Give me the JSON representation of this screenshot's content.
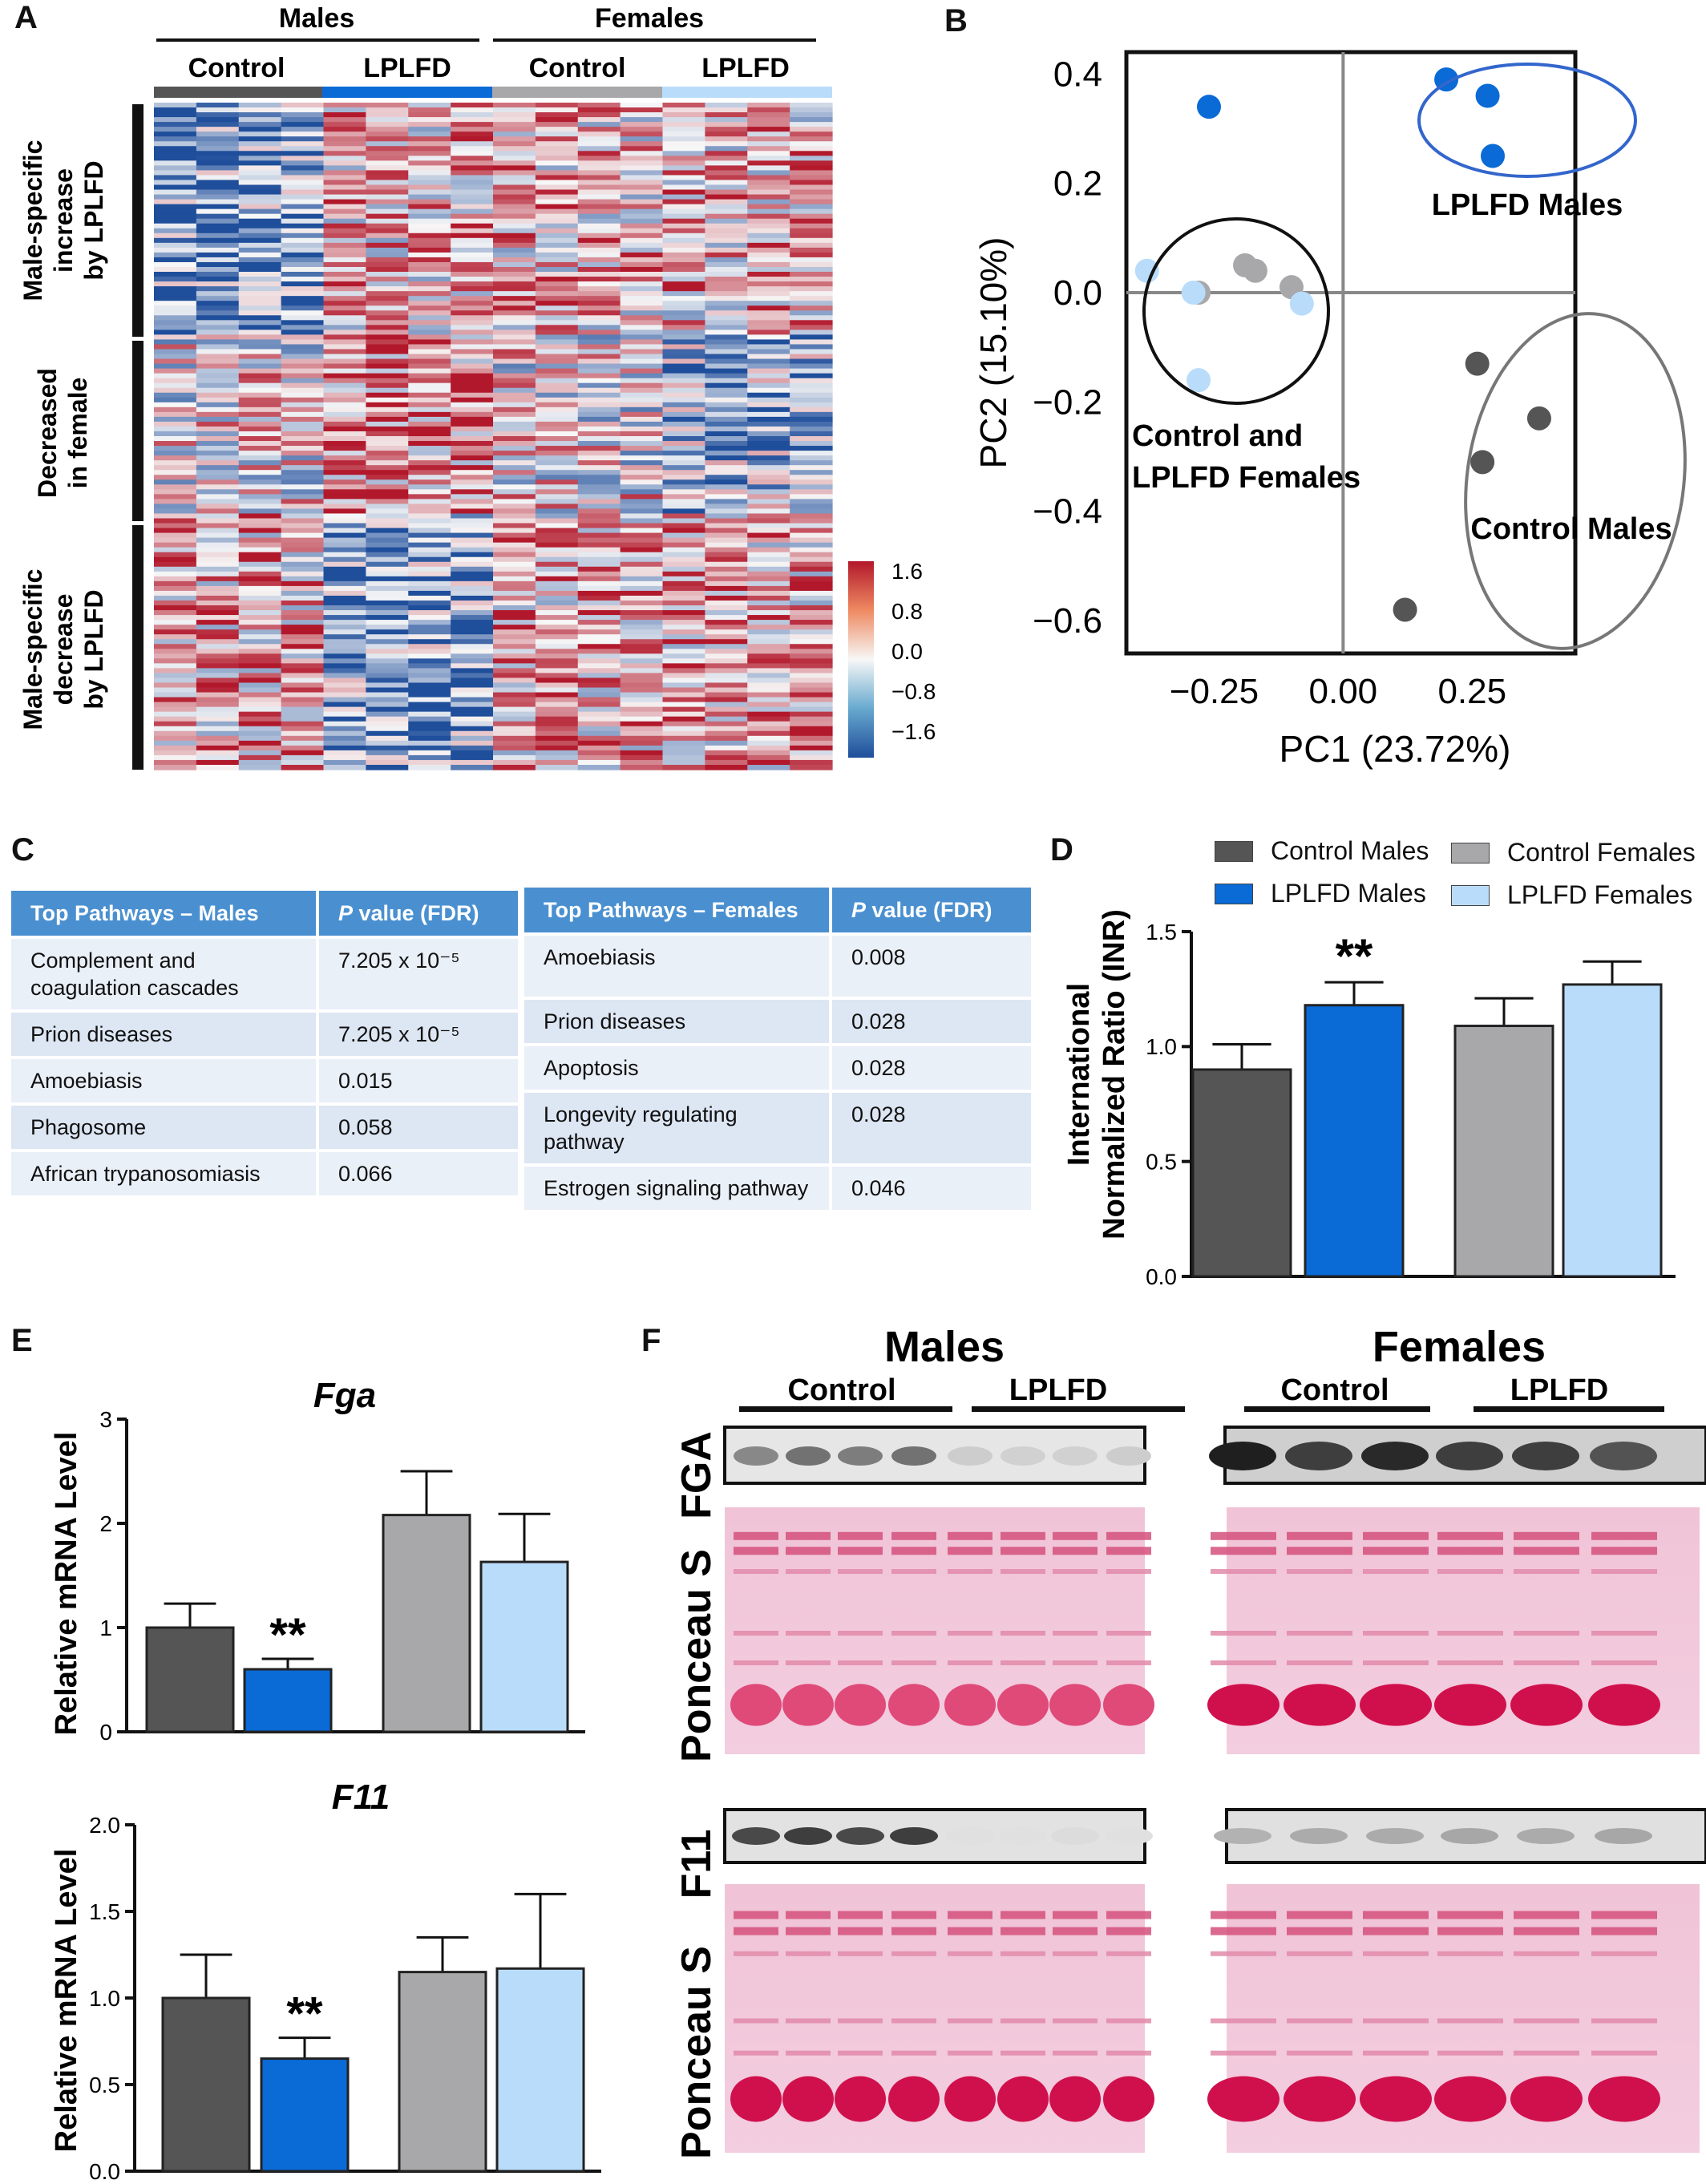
{
  "panels": {
    "a": "A",
    "b": "B",
    "c": "C",
    "d": "D",
    "e": "E",
    "f": "F"
  },
  "colors": {
    "control_males": "#555555",
    "lplfd_males": "#0a6ad6",
    "control_females": "#a8a8ab",
    "lplfd_females": "#b9dcfb",
    "table_header": "#4a90d0"
  },
  "panel_a": {
    "sexes": [
      "Males",
      "Females"
    ],
    "groups": [
      "Control",
      "LPLFD",
      "Control",
      "LPLFD"
    ],
    "row_groups": [
      "Male-specific increase by LPLFD",
      "Decreased in female",
      "Male-specific decrease by LPLFD"
    ],
    "colorbar_ticks": [
      "1.6",
      "0.8",
      "0.0",
      "−0.8",
      "−1.6"
    ]
  },
  "chart_data": [
    {
      "panel": "B",
      "type": "scatter",
      "xlabel": "PC1 (23.72%)",
      "ylabel": "PC2 (15.10%)",
      "xlim": [
        -0.42,
        0.45
      ],
      "ylim": [
        -0.66,
        0.44
      ],
      "xticks": [
        "−0.25",
        "0.00",
        "0.25"
      ],
      "yticks": [
        "0.4",
        "0.2",
        "0.0",
        "−0.2",
        "−0.4",
        "−0.6"
      ],
      "grid": false,
      "series": [
        {
          "group": "lplfd_males",
          "points": [
            [
              -0.26,
              0.34
            ],
            [
              0.2,
              0.39
            ],
            [
              0.28,
              0.36
            ],
            [
              0.29,
              0.25
            ]
          ]
        },
        {
          "group": "control_males",
          "points": [
            [
              0.26,
              -0.13
            ],
            [
              0.38,
              -0.23
            ],
            [
              0.27,
              -0.31
            ],
            [
              0.12,
              -0.58
            ]
          ]
        },
        {
          "group": "control_females",
          "points": [
            [
              -0.19,
              0.05
            ],
            [
              -0.17,
              0.04
            ],
            [
              -0.1,
              0.01
            ],
            [
              -0.28,
              0.0
            ]
          ]
        },
        {
          "group": "lplfd_females",
          "points": [
            [
              -0.38,
              0.04
            ],
            [
              -0.29,
              0.0
            ],
            [
              -0.08,
              -0.02
            ],
            [
              -0.28,
              -0.16
            ]
          ]
        }
      ],
      "annotations": [
        "LPLFD Males",
        "Control and",
        "LPLFD Females",
        "Control Males"
      ]
    },
    {
      "panel": "D",
      "type": "bar",
      "ylabel": "International Normalized Ratio (INR)",
      "ylim": [
        0,
        1.5
      ],
      "yticks": [
        "0.0",
        "0.5",
        "1.0",
        "1.5"
      ],
      "categories": [
        "Control Males",
        "LPLFD Males",
        "Control Females",
        "LPLFD Females"
      ],
      "values": [
        0.9,
        1.18,
        1.09,
        1.27
      ],
      "errors": [
        0.11,
        0.1,
        0.12,
        0.1
      ],
      "significance": [
        "",
        "**",
        "",
        ""
      ],
      "legend": [
        "Control Males",
        "LPLFD Males",
        "Control Females",
        "LPLFD Females"
      ]
    },
    {
      "panel": "E",
      "type": "bar",
      "title": "Fga",
      "ylabel": "Relative mRNA Level",
      "ylim": [
        0,
        3
      ],
      "yticks": [
        "0",
        "1",
        "2",
        "3"
      ],
      "categories": [
        "Control Males",
        "LPLFD Males",
        "Control Females",
        "LPLFD Females"
      ],
      "values": [
        1.0,
        0.6,
        2.08,
        1.63
      ],
      "errors": [
        0.23,
        0.1,
        0.42,
        0.46
      ],
      "significance": [
        "",
        "**",
        "",
        ""
      ]
    },
    {
      "panel": "E",
      "type": "bar",
      "title": "F11",
      "ylabel": "Relative mRNA Level",
      "ylim": [
        0,
        2
      ],
      "yticks": [
        "0.0",
        "0.5",
        "1.0",
        "1.5",
        "2.0"
      ],
      "categories": [
        "Control Males",
        "LPLFD Males",
        "Control Females",
        "LPLFD Females"
      ],
      "values": [
        1.0,
        0.65,
        1.15,
        1.17
      ],
      "errors": [
        0.25,
        0.12,
        0.2,
        0.43
      ],
      "significance": [
        "",
        "**",
        "",
        ""
      ]
    }
  ],
  "panel_c": {
    "males": {
      "header_pathway": "Top Pathways – Males",
      "header_p_italic": "P",
      "header_p_rest": " value  (FDR)",
      "rows": [
        {
          "pathway": "Complement  and coagulation cascades",
          "p": "7.205 x 10⁻⁵"
        },
        {
          "pathway": "Prion diseases",
          "p": "7.205 x 10⁻⁵"
        },
        {
          "pathway": "Amoebiasis",
          "p": "0.015"
        },
        {
          "pathway": "Phagosome",
          "p": "0.058"
        },
        {
          "pathway": "African trypanosomiasis",
          "p": "0.066"
        }
      ]
    },
    "females": {
      "header_pathway": "Top Pathways – Females",
      "header_p_italic": "P",
      "header_p_rest": " value  (FDR)",
      "rows": [
        {
          "pathway": "Amoebiasis",
          "p": "0.008"
        },
        {
          "pathway": "Prion diseases",
          "p": "0.028"
        },
        {
          "pathway": "Apoptosis",
          "p": "0.028"
        },
        {
          "pathway": "Longevity  regulating pathway",
          "p": "0.028"
        },
        {
          "pathway": "Estrogen signaling pathway",
          "p": "0.046"
        }
      ]
    }
  },
  "panel_f": {
    "sexes": [
      "Males",
      "Females"
    ],
    "groups": [
      "Control",
      "LPLFD",
      "Control",
      "LPLFD"
    ],
    "blots": [
      "FGA",
      "Ponceau S",
      "F11",
      "Ponceau S"
    ],
    "fga_intensity": {
      "males": [
        0.45,
        0.55,
        0.5,
        0.55,
        0.12,
        0.1,
        0.1,
        0.12
      ],
      "females": [
        0.95,
        0.8,
        0.9,
        0.8,
        0.8,
        0.7
      ]
    },
    "f11_intensity": {
      "males": [
        0.75,
        0.8,
        0.75,
        0.8,
        0.03,
        0.03,
        0.05,
        0.03
      ],
      "females": [
        0.25,
        0.28,
        0.28,
        0.3,
        0.28,
        0.3
      ]
    }
  }
}
